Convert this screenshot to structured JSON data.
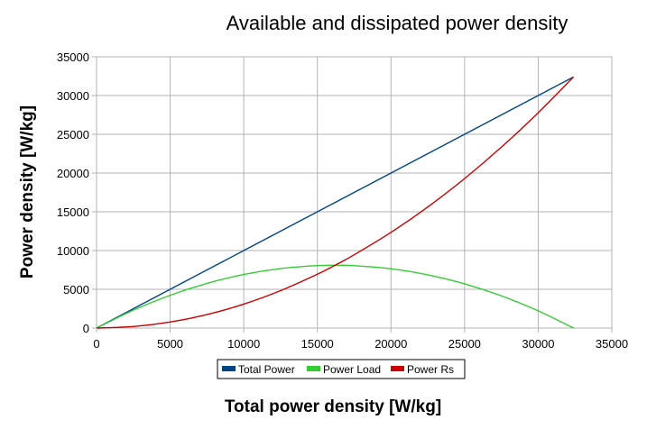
{
  "chart_data": {
    "type": "line",
    "title": "Available and dissipated power density",
    "xlabel": "Total power density [W/kg]",
    "ylabel": "Power density [W/kg]",
    "xlim": [
      0,
      35000
    ],
    "ylim": [
      0,
      35000
    ],
    "x_ticks": [
      0,
      5000,
      10000,
      15000,
      20000,
      25000,
      30000,
      35000
    ],
    "y_ticks": [
      0,
      5000,
      10000,
      15000,
      20000,
      25000,
      30000,
      35000
    ],
    "grid": true,
    "legend": "bottom-center",
    "series": [
      {
        "name": "Total Power",
        "color": "#004586",
        "x": [
          0,
          2500,
          5000,
          7500,
          10000,
          12500,
          15000,
          17500,
          20000,
          22500,
          25000,
          27500,
          30000,
          32400
        ],
        "y": [
          0,
          2500,
          5000,
          7500,
          10000,
          12500,
          15000,
          17500,
          20000,
          22500,
          25000,
          27500,
          30000,
          32400
        ]
      },
      {
        "name": "Power Load",
        "color": "#33cc33",
        "x": [
          0,
          2500,
          5000,
          7500,
          10000,
          12500,
          15000,
          16200,
          17500,
          20000,
          22500,
          25000,
          27500,
          30000,
          32400
        ],
        "y": [
          0,
          2307,
          4228,
          5764,
          6914,
          7677,
          8056,
          8100,
          8047,
          7654,
          6875,
          5710,
          4159,
          2222,
          0
        ]
      },
      {
        "name": "Power Rs",
        "color": "#cc0000",
        "x": [
          0,
          2500,
          5000,
          7500,
          10000,
          12500,
          15000,
          16200,
          17500,
          20000,
          22500,
          25000,
          27500,
          30000,
          32400
        ],
        "y": [
          0,
          193,
          772,
          1736,
          3086,
          4823,
          6944,
          8100,
          9453,
          12346,
          15625,
          19290,
          23341,
          27778,
          32400
        ]
      }
    ]
  }
}
